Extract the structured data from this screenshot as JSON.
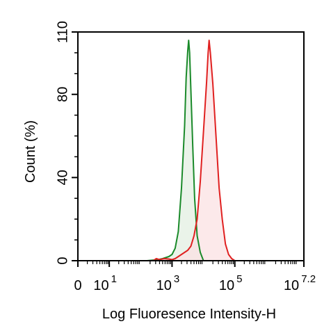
{
  "chart_data": {
    "type": "area",
    "xlabel": "Log Fluoresence Intensity-H",
    "ylabel": "Count  (%)",
    "xscale": "log",
    "xlim": [
      0,
      7.2
    ],
    "ylim": [
      0,
      110
    ],
    "x_ticks": [
      {
        "value": 0,
        "base": "0",
        "sup": ""
      },
      {
        "value": 1,
        "base": "10",
        "sup": "1"
      },
      {
        "value": 3,
        "base": "10",
        "sup": "3"
      },
      {
        "value": 5,
        "base": "10",
        "sup": "5"
      },
      {
        "value": 7.2,
        "base": "10",
        "sup": "7.2"
      }
    ],
    "y_ticks": [
      0,
      40,
      80,
      110
    ],
    "series": [
      {
        "color": "#1a8a2a",
        "fill": "#e3efe1",
        "points": [
          [
            0.2,
            0
          ],
          [
            2.2,
            0
          ],
          [
            2.55,
            0.5
          ],
          [
            2.7,
            1
          ],
          [
            2.9,
            2
          ],
          [
            3.0,
            3
          ],
          [
            3.1,
            6
          ],
          [
            3.2,
            14
          ],
          [
            3.3,
            35
          ],
          [
            3.4,
            65
          ],
          [
            3.45,
            88
          ],
          [
            3.5,
            101
          ],
          [
            3.53,
            106
          ],
          [
            3.56,
            100
          ],
          [
            3.6,
            82
          ],
          [
            3.66,
            55
          ],
          [
            3.72,
            30
          ],
          [
            3.8,
            12
          ],
          [
            3.9,
            4
          ],
          [
            4.0,
            0
          ],
          [
            5.2,
            0
          ]
        ]
      },
      {
        "color": "#e02020",
        "fill": "#fbe1e3",
        "points": [
          [
            0.2,
            0
          ],
          [
            2.4,
            0
          ],
          [
            2.5,
            1
          ],
          [
            2.6,
            0.5
          ],
          [
            2.75,
            1
          ],
          [
            2.9,
            0.8
          ],
          [
            3.0,
            0.5
          ],
          [
            3.1,
            1
          ],
          [
            3.3,
            3
          ],
          [
            3.5,
            5
          ],
          [
            3.6,
            7
          ],
          [
            3.7,
            12
          ],
          [
            3.8,
            20
          ],
          [
            3.9,
            38
          ],
          [
            4.0,
            62
          ],
          [
            4.1,
            86
          ],
          [
            4.15,
            100
          ],
          [
            4.18,
            106
          ],
          [
            4.22,
            100
          ],
          [
            4.3,
            85
          ],
          [
            4.4,
            60
          ],
          [
            4.5,
            35
          ],
          [
            4.6,
            20
          ],
          [
            4.7,
            8
          ],
          [
            4.8,
            3
          ],
          [
            4.9,
            1
          ],
          [
            5.0,
            0
          ],
          [
            5.2,
            0
          ]
        ]
      }
    ]
  }
}
